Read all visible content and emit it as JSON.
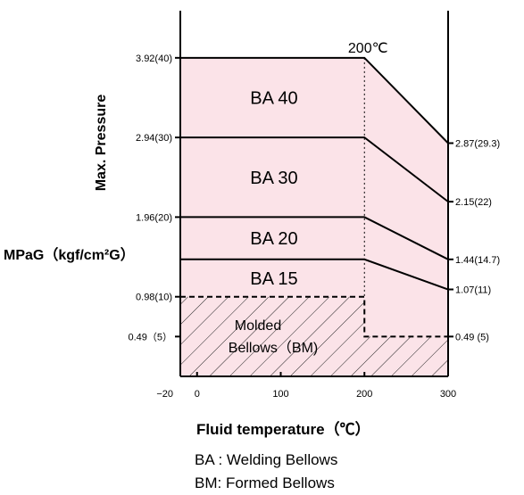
{
  "chart_data": {
    "type": "area",
    "title": "",
    "xlabel": "Fluid temperature（℃）",
    "ylabel": "Max. Pressure",
    "ylabel_unit": "MPaG（kgf/cm²G）",
    "xlim": [
      -20,
      300
    ],
    "ylim": [
      0,
      4.5
    ],
    "x_ticks": [
      "−20",
      "0",
      "100",
      "200",
      "300"
    ],
    "x_tick_values": [
      -20,
      0,
      100,
      200,
      300
    ],
    "y_ticks_left": [
      {
        "value": 3.92,
        "label": "3.92(40)"
      },
      {
        "value": 2.94,
        "label": "2.94(30)"
      },
      {
        "value": 1.96,
        "label": "1.96(20)"
      },
      {
        "value": 0.98,
        "label": "0.98(10)"
      },
      {
        "value": 0.49,
        "label": "0.49（5）"
      }
    ],
    "y_ticks_right": [
      {
        "value": 2.87,
        "label": "2.87(29.3)"
      },
      {
        "value": 2.15,
        "label": "2.15(22)"
      },
      {
        "value": 1.44,
        "label": "1.44(14.7)"
      },
      {
        "value": 1.07,
        "label": "1.07(11)"
      },
      {
        "value": 0.49,
        "label": "0.49 (5)"
      }
    ],
    "series": [
      {
        "name": "BA 40",
        "x": [
          -20,
          200,
          300
        ],
        "y": [
          3.92,
          3.92,
          2.87
        ]
      },
      {
        "name": "BA 30",
        "x": [
          -20,
          200,
          300
        ],
        "y": [
          2.94,
          2.94,
          2.15
        ]
      },
      {
        "name": "BA 20",
        "x": [
          -20,
          200,
          300
        ],
        "y": [
          1.96,
          1.96,
          1.44
        ]
      },
      {
        "name": "BA 15",
        "x": [
          -20,
          200,
          300
        ],
        "y": [
          1.44,
          1.44,
          1.07
        ]
      }
    ],
    "molded_region": {
      "label_line1": "Molded",
      "label_line2": "Bellows（BM)",
      "x": [
        -20,
        200,
        200,
        300
      ],
      "y": [
        0.98,
        0.98,
        0.49,
        0.49
      ]
    },
    "vertical_marker": {
      "x": 200,
      "label": "200℃"
    },
    "fill_color": "#fbe3e8",
    "legend_notes": [
      "BA : Welding Bellows",
      "BM: Formed Bellows"
    ]
  }
}
